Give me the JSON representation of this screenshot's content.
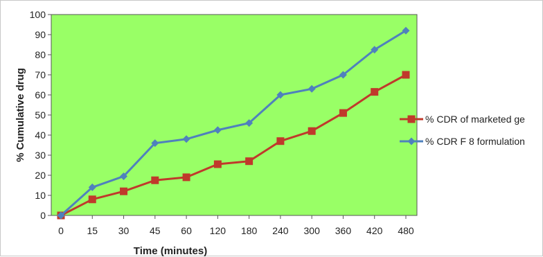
{
  "chart_data": {
    "type": "line",
    "title": "",
    "xlabel": "Time (minutes)",
    "ylabel": "% Cumulative  drug",
    "categories": [
      "0",
      "15",
      "30",
      "45",
      "60",
      "120",
      "180",
      "240",
      "300",
      "360",
      "420",
      "480"
    ],
    "ylim": [
      0,
      100
    ],
    "yticks": [
      0,
      10,
      20,
      30,
      40,
      50,
      60,
      70,
      80,
      90,
      100
    ],
    "grid": false,
    "plot_background": "#99ff66",
    "legend_position": "right",
    "series": [
      {
        "name": "% CDR of marketed ge",
        "color": "#c0392b",
        "marker": "square",
        "values": [
          0,
          8,
          12,
          17.5,
          19,
          25.5,
          27,
          37,
          42,
          51,
          61.5,
          70
        ]
      },
      {
        "name": "% CDR F 8 formulation",
        "color": "#4f81bd",
        "marker": "diamond",
        "values": [
          0,
          14,
          19.5,
          36,
          38,
          42.5,
          46,
          60,
          63,
          70,
          82.5,
          92
        ]
      }
    ]
  }
}
